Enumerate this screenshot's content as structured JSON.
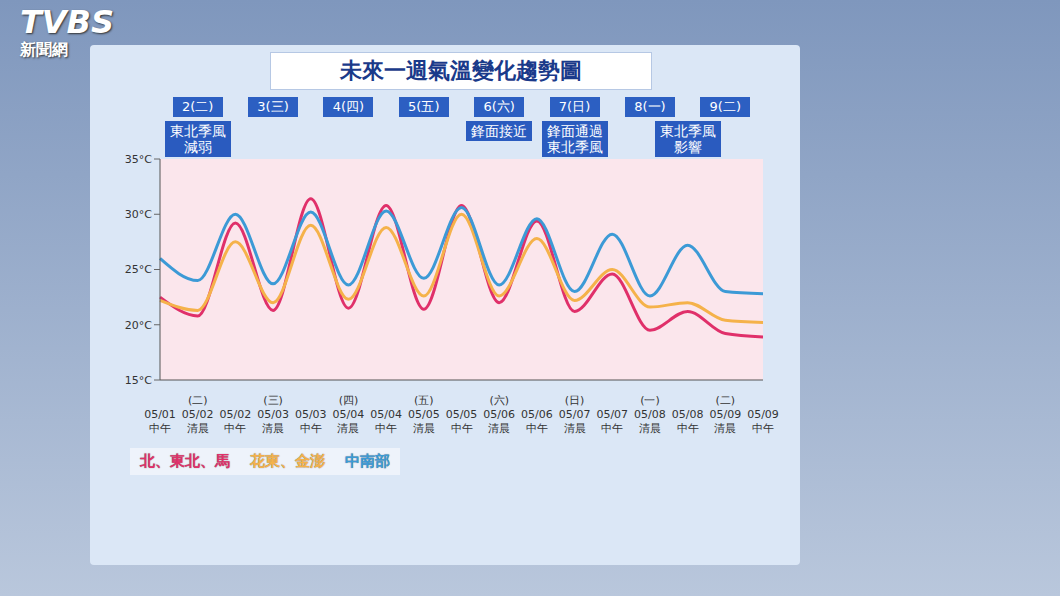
{
  "logo": {
    "text": "TVBS",
    "subtitle": "新聞網"
  },
  "chart_data": {
    "type": "line",
    "title": "未來一週氣溫變化趨勢圖",
    "categories": [
      "05/01 中午",
      "(二) 05/02 清晨",
      "05/02 中午",
      "(三) 05/03 清晨",
      "05/03 中午",
      "(四) 05/04 清晨",
      "05/04 中午",
      "(五) 05/05 清晨",
      "05/05 中午",
      "(六) 05/06 清晨",
      "05/06 中午",
      "(日) 05/07 清晨",
      "05/07 中午",
      "(一) 05/08 清晨",
      "05/08 中午",
      "(二) 05/09 清晨",
      "05/09 中午"
    ],
    "series": [
      {
        "name": "北、東北、馬",
        "color": "#e0306a",
        "values": [
          22.5,
          20.8,
          29.2,
          21.3,
          31.4,
          21.5,
          30.8,
          21.4,
          30.8,
          22.0,
          29.4,
          21.2,
          24.6,
          19.5,
          21.2,
          19.2,
          18.9
        ]
      },
      {
        "name": "花東、金澎",
        "color": "#f5b24a",
        "values": [
          22.2,
          21.3,
          27.5,
          22.0,
          29.0,
          22.3,
          28.8,
          22.6,
          30.0,
          22.6,
          27.8,
          22.2,
          25.0,
          21.6,
          22.0,
          20.4,
          20.2
        ]
      },
      {
        "name": "中南部",
        "color": "#3c9ad6",
        "values": [
          26.0,
          24.0,
          30.0,
          23.7,
          30.2,
          23.6,
          30.3,
          24.2,
          30.6,
          23.6,
          29.6,
          23.0,
          28.2,
          22.6,
          27.2,
          23.0,
          22.8
        ]
      }
    ],
    "ylim": [
      15,
      35
    ],
    "yticks": [
      {
        "value": 15,
        "label": "15°C"
      },
      {
        "value": 20,
        "label": "20°C"
      },
      {
        "value": 25,
        "label": "25°C"
      },
      {
        "value": 30,
        "label": "30°C"
      },
      {
        "value": 35,
        "label": "35°C"
      }
    ],
    "grid": false,
    "legend": "bottom",
    "day_headers": [
      "2(二)",
      "3(三)",
      "4(四)",
      "5(五)",
      "6(六)",
      "7(日)",
      "8(一)",
      "9(二)"
    ],
    "annotations": [
      {
        "text": "東北季風減弱",
        "day": [
          "2(二)"
        ]
      },
      {
        "text": "鋒面接近",
        "day": [
          "6(六)"
        ]
      },
      {
        "text": "鋒面通過東北季風",
        "day": [
          "7(日)"
        ]
      },
      {
        "text": "東北季風影響",
        "day": [
          "8(一)",
          "9(二)"
        ]
      }
    ]
  }
}
